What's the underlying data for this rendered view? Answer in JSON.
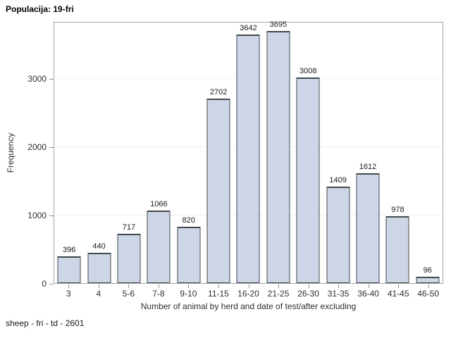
{
  "colors": {
    "bar_fill": "#ccd6e6",
    "bar_border": "#44484e",
    "frame_border": "#a3a3a3",
    "gridline": "#f0f0f0",
    "tick": "#8e8e8e"
  },
  "chart_data": {
    "type": "bar",
    "title": "Populacija: 19-fri",
    "categories": [
      "3",
      "4",
      "5-6",
      "7-8",
      "9-10",
      "11-15",
      "16-20",
      "21-25",
      "26-30",
      "31-35",
      "36-40",
      "41-45",
      "46-50"
    ],
    "values": [
      396,
      440,
      717,
      1066,
      820,
      2702,
      3642,
      3695,
      3008,
      1409,
      1612,
      978,
      96
    ],
    "bar_labels": true,
    "xlabel": "Number of animal by herd and date of test/after excluding",
    "ylabel": "Frequency",
    "yticks": [
      0,
      1000,
      2000,
      3000
    ],
    "ylim": [
      0,
      3835
    ],
    "grid": true,
    "legend": "none",
    "footnote": "sheep - fri - td - 2601"
  }
}
